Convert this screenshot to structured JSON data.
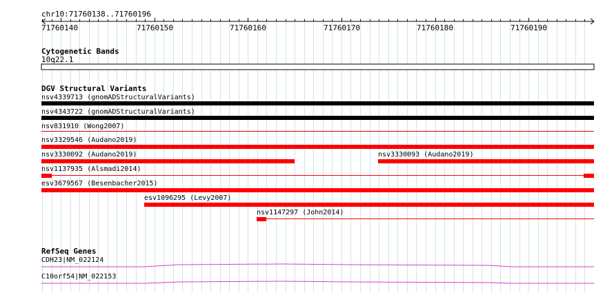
{
  "ruler": {
    "location": "chr10:71760138..71760196",
    "ticks": [
      "71760140",
      "71760150",
      "71760160",
      "71760170",
      "71760180",
      "71760190"
    ]
  },
  "cytoband": {
    "title": "Cytogenetic Bands",
    "band": "10q22.1"
  },
  "dgv": {
    "title": "DGV Structural Variants",
    "features": [
      {
        "label": "nsv4339713 (gnomADStructuralVariants)",
        "color": "#000000"
      },
      {
        "label": "nsv4343722 (gnomADStructuralVariants)",
        "color": "#000000"
      },
      {
        "label": "nsv831910 (Wong2007)",
        "color": "#e00000"
      },
      {
        "label": "nsv3329546 (Audano2019)",
        "color": "#ff0000"
      },
      {
        "label": "nsv3330092 (Audano2019)",
        "color": "#ff0000"
      },
      {
        "label": "nsv3330093 (Audano2019)",
        "color": "#ff0000"
      },
      {
        "label": "nsv1137935 (Alsmadi2014)",
        "color": "#ff0000"
      },
      {
        "label": "esv3679567 (Besenbacher2015)",
        "color": "#ff0000"
      },
      {
        "label": "esv1096295 (Levy2007)",
        "color": "#ff0000"
      },
      {
        "label": "nsv1147297 (John2014)",
        "color": "#ff0000"
      }
    ]
  },
  "refseq": {
    "title": "RefSeq Genes",
    "genes": [
      {
        "label": "CDH23|NM_022124",
        "color": "#cc44cc"
      },
      {
        "label": "C10orf54|NM_022153",
        "color": "#cc44cc"
      }
    ]
  }
}
